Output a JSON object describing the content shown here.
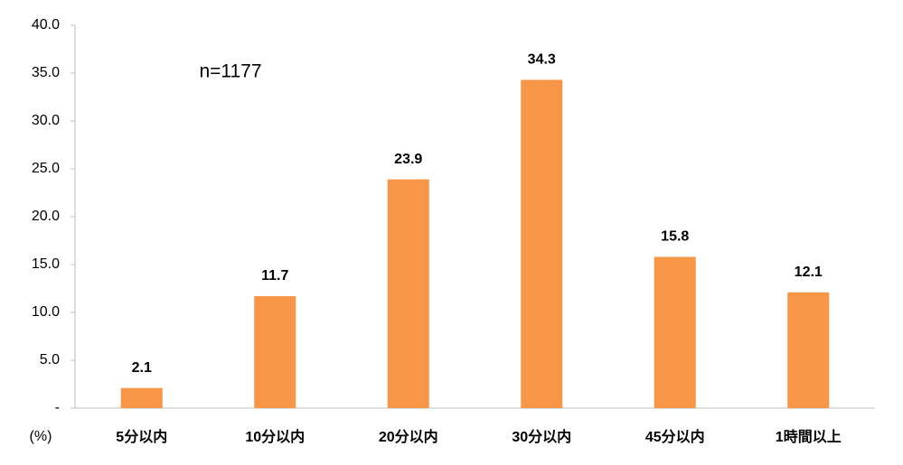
{
  "chart_data": {
    "type": "bar",
    "annotation": "n=1177",
    "ylabel": "(%)",
    "categories": [
      "5分以内",
      "10分以内",
      "20分以内",
      "30分以内",
      "45分以内",
      "1時間以上"
    ],
    "values": [
      2.1,
      11.7,
      23.9,
      34.3,
      15.8,
      12.1
    ],
    "color": "#f79646",
    "ylim": [
      0,
      40
    ],
    "yticks": [
      {
        "value": 0,
        "label": "-"
      },
      {
        "value": 5,
        "label": "5.0"
      },
      {
        "value": 10,
        "label": "10.0"
      },
      {
        "value": 15,
        "label": "15.0"
      },
      {
        "value": 20,
        "label": "20.0"
      },
      {
        "value": 25,
        "label": "25.0"
      },
      {
        "value": 30,
        "label": "30.0"
      },
      {
        "value": 35,
        "label": "35.0"
      },
      {
        "value": 40,
        "label": "40.0"
      }
    ],
    "grid": false
  }
}
